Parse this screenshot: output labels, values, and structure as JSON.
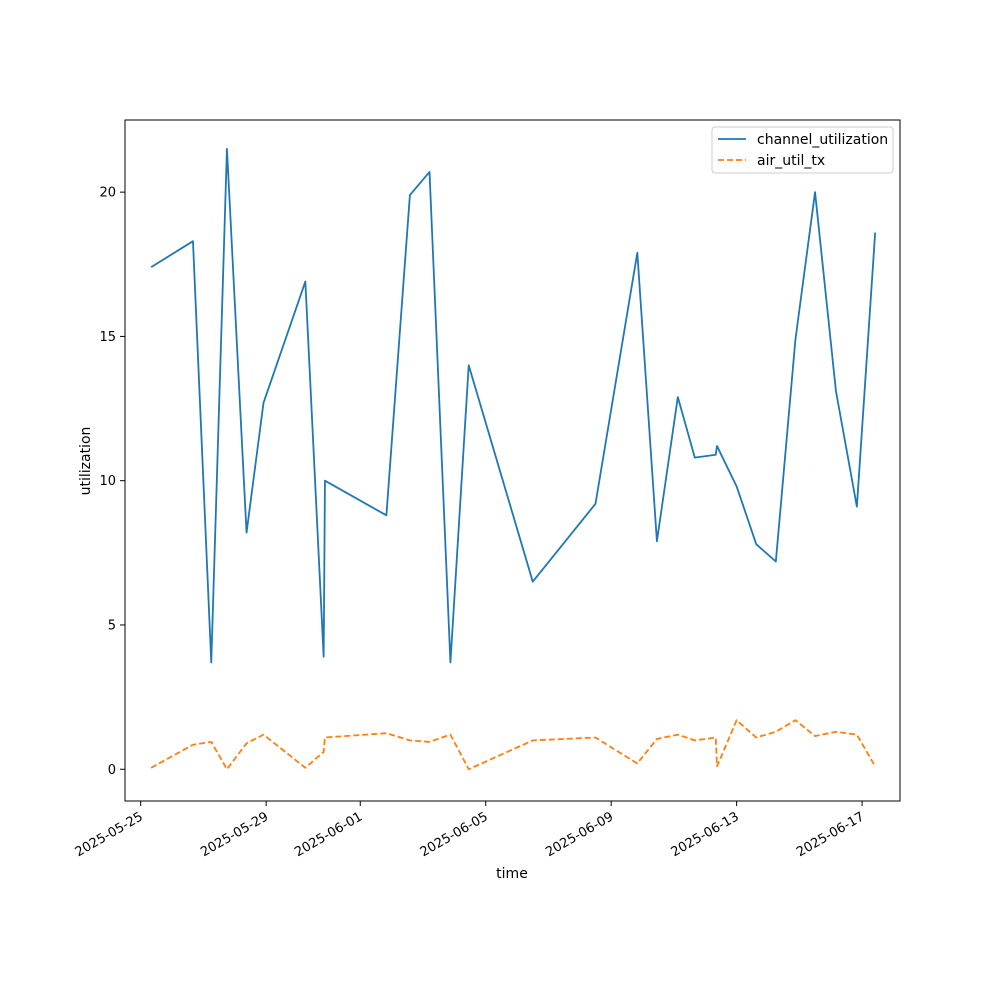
{
  "chart_data": {
    "type": "line",
    "title": "",
    "xlabel": "time",
    "ylabel": "utilization",
    "xlim": [
      "2025-05-24 12:00",
      "2025-06-18 05:00"
    ],
    "ylim": [
      -1.1,
      22.5
    ],
    "x_ticks": [
      "2025-05-25",
      "2025-05-29",
      "2025-06-01",
      "2025-06-05",
      "2025-06-09",
      "2025-06-13",
      "2025-06-17"
    ],
    "y_ticks": [
      "0",
      "5",
      "10",
      "15",
      "20"
    ],
    "grid": false,
    "legend": "upper-right",
    "series": [
      {
        "name": "channel_utilization",
        "color": "#1f77b4",
        "style": "solid",
        "points": [
          [
            "2025-05-25 08:00",
            17.4
          ],
          [
            "2025-05-26 16:00",
            18.3
          ],
          [
            "2025-05-27 06:00",
            3.7
          ],
          [
            "2025-05-27 18:00",
            21.5
          ],
          [
            "2025-05-28 09:00",
            8.2
          ],
          [
            "2025-05-28 22:00",
            12.7
          ],
          [
            "2025-05-30 06:00",
            16.9
          ],
          [
            "2025-05-30 20:00",
            3.9
          ],
          [
            "2025-05-30 21:00",
            10.0
          ],
          [
            "2025-06-01 20:00",
            8.8
          ],
          [
            "2025-06-02 14:00",
            19.9
          ],
          [
            "2025-06-03 05:00",
            20.7
          ],
          [
            "2025-06-03 21:00",
            3.7
          ],
          [
            "2025-06-04 11:00",
            14.0
          ],
          [
            "2025-06-06 12:00",
            6.5
          ],
          [
            "2025-06-08 12:00",
            9.2
          ],
          [
            "2025-06-09 20:00",
            17.9
          ],
          [
            "2025-06-10 11:00",
            7.9
          ],
          [
            "2025-06-11 03:00",
            12.9
          ],
          [
            "2025-06-11 16:00",
            10.8
          ],
          [
            "2025-06-12 08:00",
            10.9
          ],
          [
            "2025-06-12 09:00",
            11.2
          ],
          [
            "2025-06-13 00:00",
            9.8
          ],
          [
            "2025-06-13 15:00",
            7.8
          ],
          [
            "2025-06-14 06:00",
            7.2
          ],
          [
            "2025-06-14 21:00",
            14.9
          ],
          [
            "2025-06-15 12:00",
            20.0
          ],
          [
            "2025-06-16 04:00",
            13.1
          ],
          [
            "2025-06-16 20:00",
            9.1
          ],
          [
            "2025-06-17 10:00",
            18.6
          ]
        ]
      },
      {
        "name": "air_util_tx",
        "color": "#ff7f0e",
        "style": "dashed",
        "points": [
          [
            "2025-05-25 08:00",
            0.05
          ],
          [
            "2025-05-26 16:00",
            0.85
          ],
          [
            "2025-05-27 06:00",
            0.95
          ],
          [
            "2025-05-27 18:00",
            0.0
          ],
          [
            "2025-05-28 09:00",
            0.9
          ],
          [
            "2025-05-28 22:00",
            1.2
          ],
          [
            "2025-05-30 06:00",
            0.05
          ],
          [
            "2025-05-30 20:00",
            0.6
          ],
          [
            "2025-05-30 21:00",
            1.1
          ],
          [
            "2025-06-01 20:00",
            1.25
          ],
          [
            "2025-06-02 14:00",
            1.0
          ],
          [
            "2025-06-03 05:00",
            0.95
          ],
          [
            "2025-06-03 21:00",
            1.2
          ],
          [
            "2025-06-04 11:00",
            0.0
          ],
          [
            "2025-06-06 12:00",
            1.0
          ],
          [
            "2025-06-08 12:00",
            1.1
          ],
          [
            "2025-06-09 20:00",
            0.2
          ],
          [
            "2025-06-10 11:00",
            1.05
          ],
          [
            "2025-06-11 03:00",
            1.2
          ],
          [
            "2025-06-11 16:00",
            1.0
          ],
          [
            "2025-06-12 08:00",
            1.1
          ],
          [
            "2025-06-12 09:00",
            0.1
          ],
          [
            "2025-06-13 00:00",
            1.7
          ],
          [
            "2025-06-13 15:00",
            1.1
          ],
          [
            "2025-06-14 06:00",
            1.3
          ],
          [
            "2025-06-14 21:00",
            1.7
          ],
          [
            "2025-06-15 12:00",
            1.15
          ],
          [
            "2025-06-16 04:00",
            1.3
          ],
          [
            "2025-06-16 20:00",
            1.2
          ],
          [
            "2025-06-17 10:00",
            0.1
          ]
        ]
      }
    ]
  }
}
